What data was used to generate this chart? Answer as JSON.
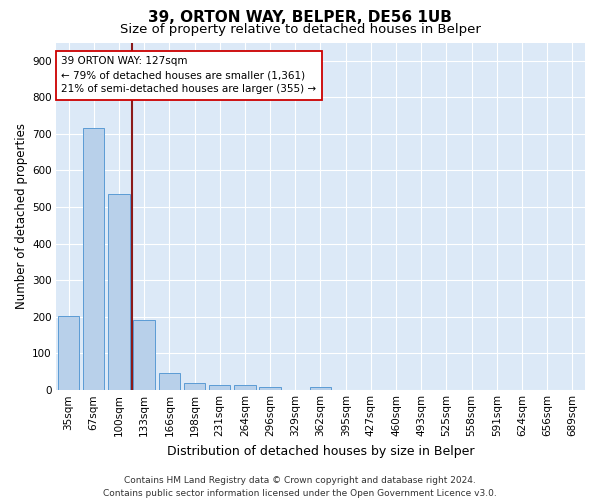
{
  "title": "39, ORTON WAY, BELPER, DE56 1UB",
  "subtitle": "Size of property relative to detached houses in Belper",
  "xlabel": "Distribution of detached houses by size in Belper",
  "ylabel": "Number of detached properties",
  "categories": [
    "35sqm",
    "67sqm",
    "100sqm",
    "133sqm",
    "166sqm",
    "198sqm",
    "231sqm",
    "264sqm",
    "296sqm",
    "329sqm",
    "362sqm",
    "395sqm",
    "427sqm",
    "460sqm",
    "493sqm",
    "525sqm",
    "558sqm",
    "591sqm",
    "624sqm",
    "656sqm",
    "689sqm"
  ],
  "values": [
    202,
    716,
    537,
    192,
    46,
    20,
    14,
    12,
    8,
    0,
    9,
    0,
    0,
    0,
    0,
    0,
    0,
    0,
    0,
    0,
    0
  ],
  "bar_color": "#b8d0ea",
  "bar_edge_color": "#5b9bd5",
  "bg_color": "#dce9f7",
  "grid_color": "#ffffff",
  "vline_color": "#8b1a1a",
  "annotation_text": "39 ORTON WAY: 127sqm\n← 79% of detached houses are smaller (1,361)\n21% of semi-detached houses are larger (355) →",
  "annotation_box_color": "#ffffff",
  "annotation_box_edge": "#cc0000",
  "ylim": [
    0,
    950
  ],
  "yticks": [
    0,
    100,
    200,
    300,
    400,
    500,
    600,
    700,
    800,
    900
  ],
  "footer": "Contains HM Land Registry data © Crown copyright and database right 2024.\nContains public sector information licensed under the Open Government Licence v3.0.",
  "title_fontsize": 11,
  "subtitle_fontsize": 9.5,
  "xlabel_fontsize": 9,
  "ylabel_fontsize": 8.5,
  "tick_fontsize": 7.5,
  "footer_fontsize": 6.5,
  "vline_x": 2.5
}
